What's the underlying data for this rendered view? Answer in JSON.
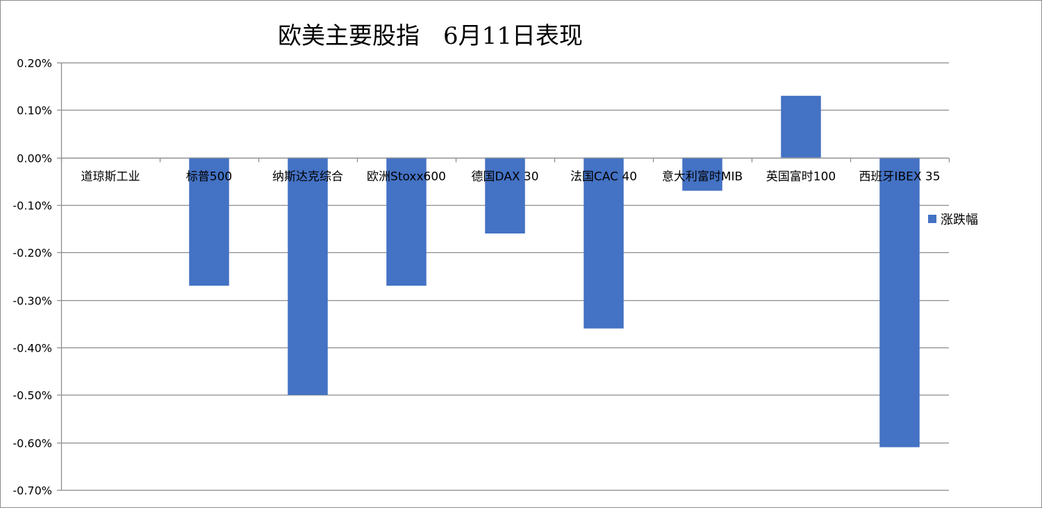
{
  "chart_data": {
    "type": "bar",
    "title": "欧美主要股指　6月11日表现",
    "categories": [
      "道琼斯工业",
      "标普500",
      "纳斯达克综合",
      "欧洲Stoxx600",
      "德国DAX 30",
      "法国CAC 40",
      "意大利富时MIB",
      "英国富时100",
      "西班牙IBEX 35"
    ],
    "series": [
      {
        "name": "涨跌幅",
        "values": [
          0.0,
          -0.27,
          -0.5,
          -0.27,
          -0.16,
          -0.36,
          -0.07,
          0.13,
          -0.61
        ]
      }
    ],
    "ylim": [
      -0.7,
      0.2
    ],
    "ytick_step": 0.1,
    "ytick_labels": [
      "0.20%",
      "0.10%",
      "0.00%",
      "-0.10%",
      "-0.20%",
      "-0.30%",
      "-0.40%",
      "-0.50%",
      "-0.60%",
      "-0.70%"
    ],
    "grid": true,
    "legend_position": "right",
    "bar_color": "#4472C4",
    "grid_color": "#8c8c8c"
  }
}
